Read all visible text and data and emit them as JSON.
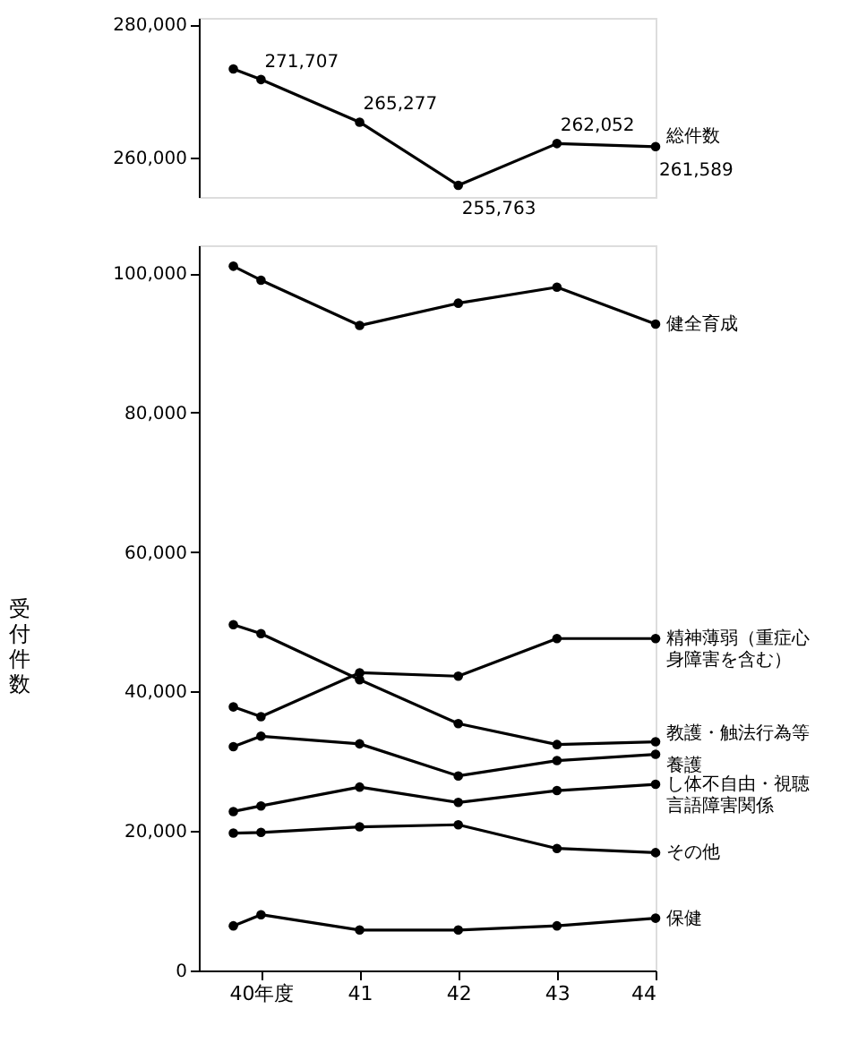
{
  "chart_data": [
    {
      "type": "line",
      "x": [
        39.72,
        40,
        41,
        42,
        43,
        44
      ],
      "xlim": [
        39.37,
        44
      ],
      "ylim": [
        254000,
        281000
      ],
      "yticks": [
        {
          "value": 260000,
          "label": "260,000"
        },
        {
          "value": 280000,
          "label": "280,000"
        }
      ],
      "tick_labels": "y",
      "grid": false,
      "marker": "circle",
      "line_style": "solid",
      "series": [
        {
          "name": "総件数",
          "color": "#000000",
          "values": [
            273300,
            271707,
            265277,
            255763,
            262052,
            261589
          ],
          "value_labels": [
            null,
            "271,707",
            "265,277",
            "255,763",
            "262,052",
            "261,589"
          ]
        }
      ]
    },
    {
      "type": "line",
      "x": [
        39.72,
        40,
        41,
        42,
        43,
        44
      ],
      "xlim": [
        39.37,
        44
      ],
      "ylim": [
        0,
        104000
      ],
      "yticks": [
        0,
        {
          "value": 20000,
          "label": "20,000"
        },
        {
          "value": 40000,
          "label": "40,000"
        },
        {
          "value": 60000,
          "label": "60,000"
        },
        {
          "value": 80000,
          "label": "80,000"
        },
        {
          "value": 100000,
          "label": "100,000"
        }
      ],
      "xticks": [
        {
          "value": 40,
          "label": "40年度"
        },
        41,
        42,
        43,
        44
      ],
      "ylabel": "受付件数",
      "grid": false,
      "marker": "circle",
      "line_style": "solid",
      "series": [
        {
          "name": "健全育成",
          "color": "#000000",
          "values": [
            101000,
            99000,
            92500,
            95700,
            98000,
            92700
          ]
        },
        {
          "name": "精神薄弱（重症心身障害を含む）",
          "color": "#000000",
          "values": [
            37800,
            36400,
            42700,
            42200,
            47600,
            47600
          ]
        },
        {
          "name": "教護・触法行為等",
          "color": "#000000",
          "values": [
            49600,
            48300,
            41700,
            35400,
            32400,
            32800
          ]
        },
        {
          "name": "養護",
          "color": "#000000",
          "values": [
            32100,
            33600,
            32500,
            27900,
            30100,
            31000
          ]
        },
        {
          "name": "し体不自由・視聴言語障害関係",
          "color": "#000000",
          "values": [
            22800,
            23600,
            26300,
            24100,
            25800,
            26700
          ]
        },
        {
          "name": "その他",
          "color": "#000000",
          "values": [
            19700,
            19800,
            20600,
            20900,
            17500,
            16900
          ]
        },
        {
          "name": "保健",
          "color": "#000000",
          "values": [
            6400,
            8000,
            5800,
            5800,
            6400,
            7500
          ]
        }
      ]
    }
  ]
}
